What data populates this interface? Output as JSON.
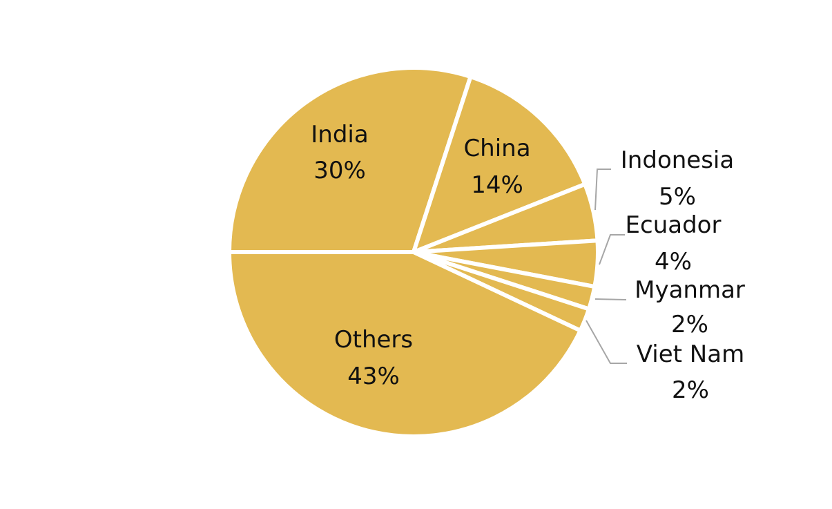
{
  "chart_data": {
    "type": "pie",
    "title": "",
    "color": "#E3B951",
    "slices": [
      {
        "label": "India",
        "value": 30,
        "value_label": "30%",
        "label_placement": "inside"
      },
      {
        "label": "China",
        "value": 14,
        "value_label": "14%",
        "label_placement": "inside"
      },
      {
        "label": "Indonesia",
        "value": 5,
        "value_label": "5%",
        "label_placement": "outside"
      },
      {
        "label": "Ecuador",
        "value": 4,
        "value_label": "4%",
        "label_placement": "outside"
      },
      {
        "label": "Myanmar",
        "value": 2,
        "value_label": "2%",
        "label_placement": "outside"
      },
      {
        "label": "Viet Nam",
        "value": 2,
        "value_label": "2%",
        "label_placement": "outside"
      },
      {
        "label": "Others",
        "value": 43,
        "value_label": "43%",
        "label_placement": "inside"
      }
    ]
  }
}
